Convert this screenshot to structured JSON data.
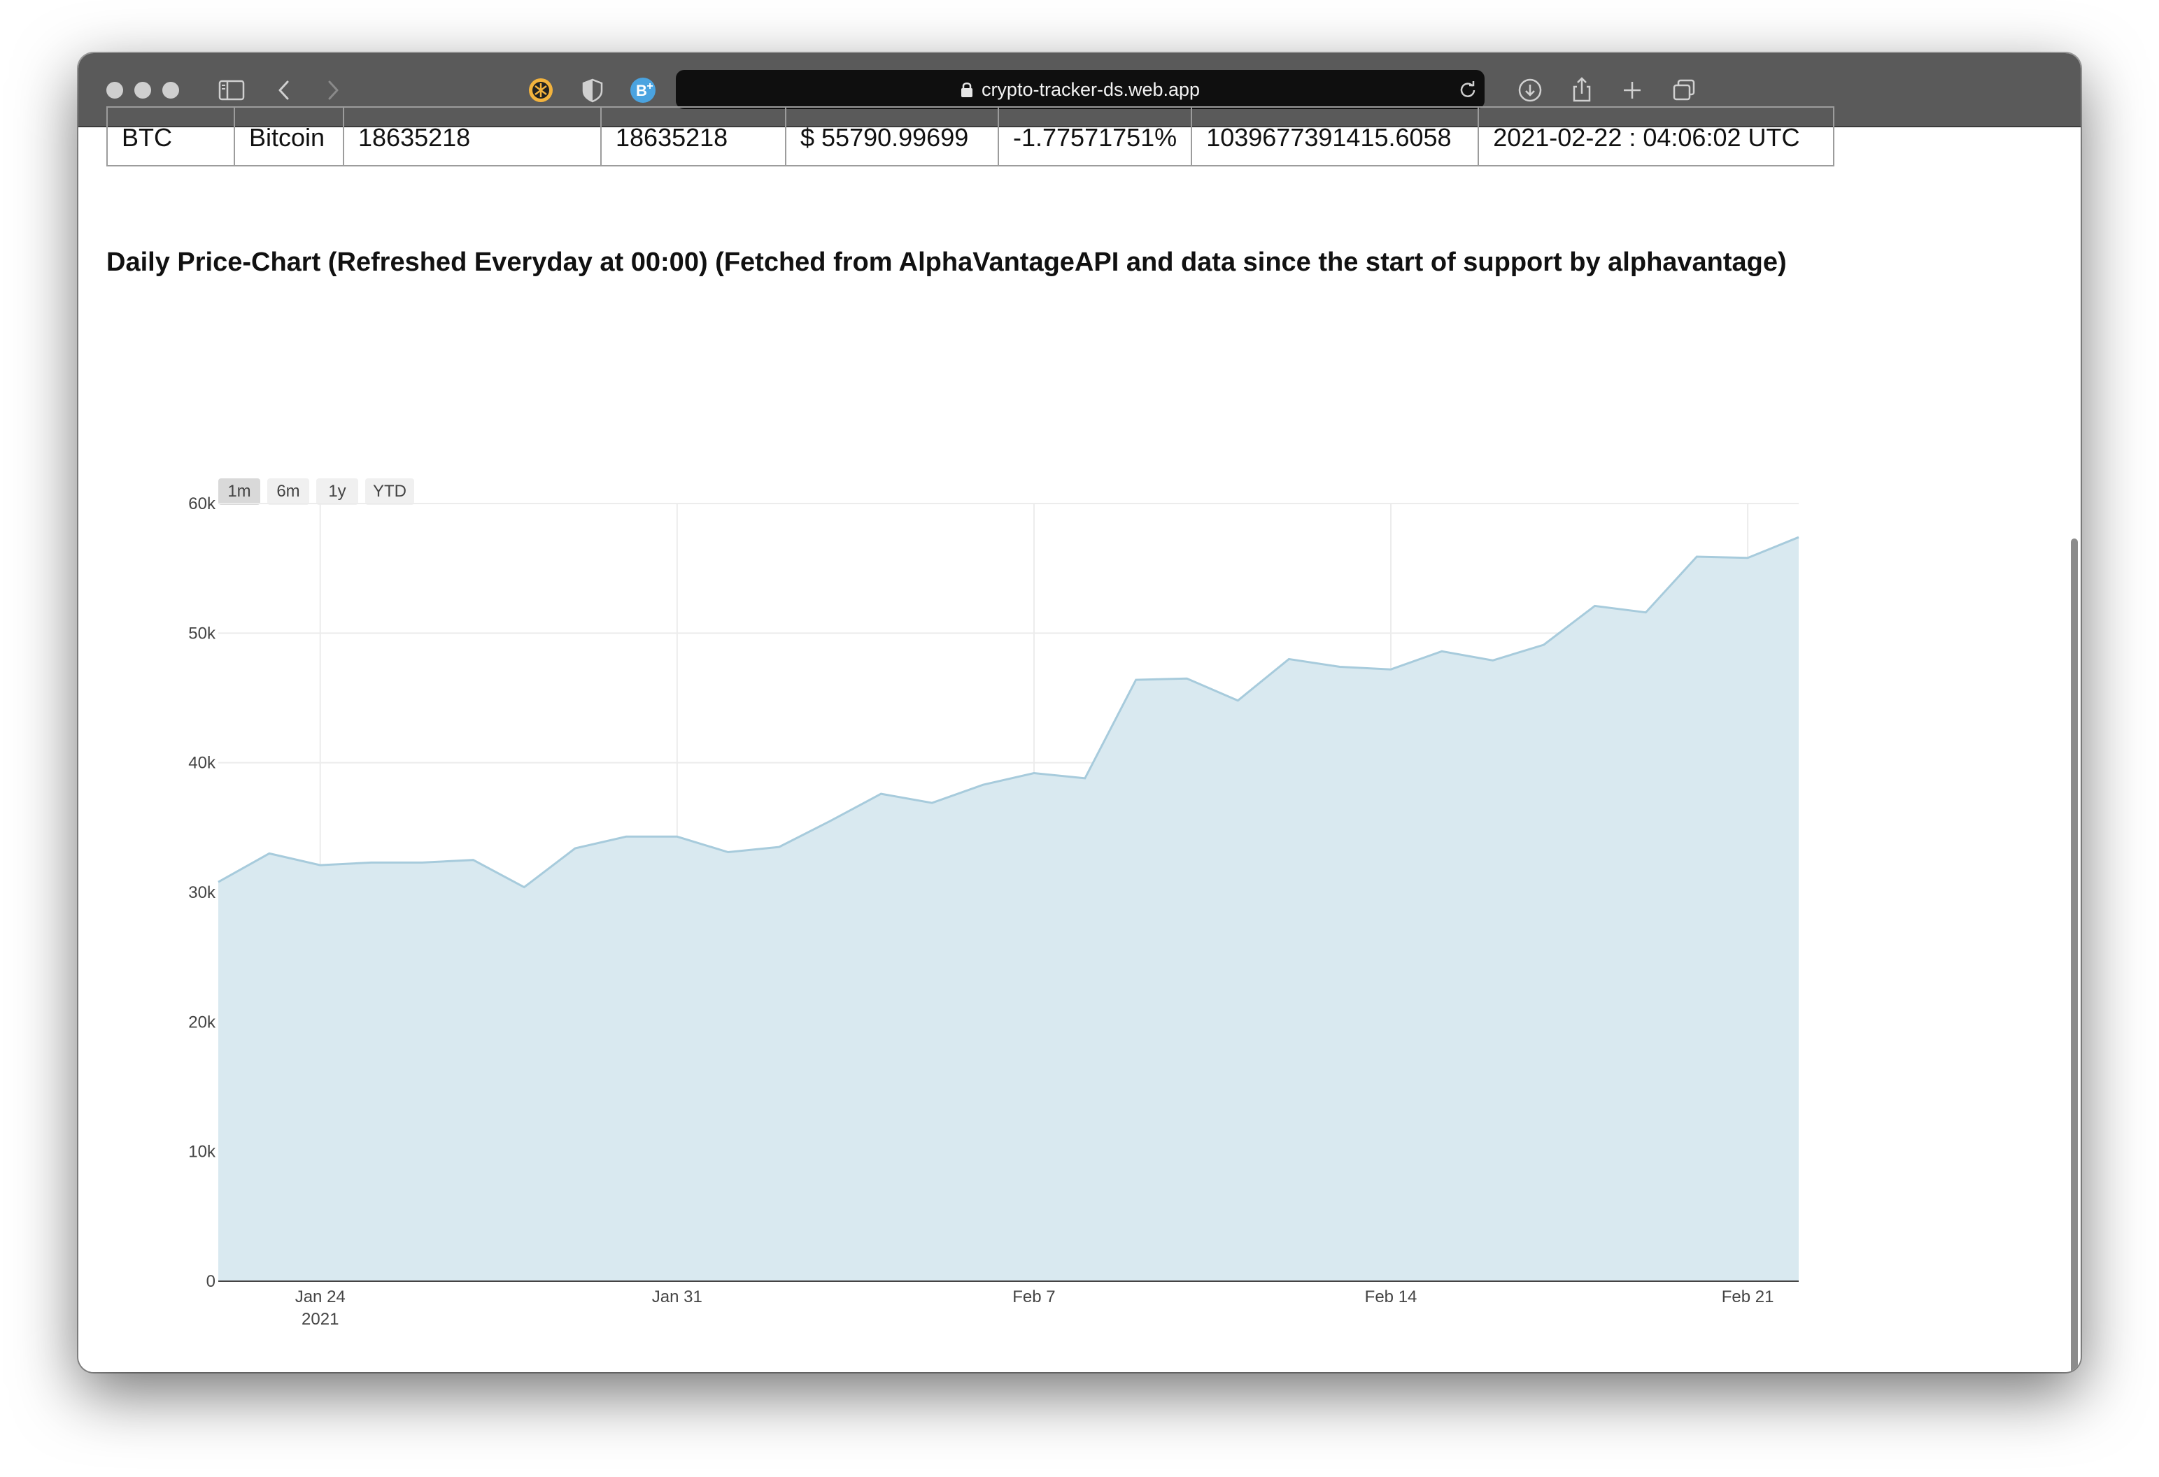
{
  "browser": {
    "url": "crypto-tracker-ds.web.app"
  },
  "table": {
    "row": [
      "BTC",
      "Bitcoin",
      "18635218",
      "18635218",
      "$ 55790.99699",
      "-1.77571751%",
      "1039677391415.6058",
      "2021-02-22 : 04:06:02 UTC"
    ]
  },
  "page": {
    "heading": "Daily Price-Chart (Refreshed Everyday at 00:00) (Fetched from AlphaVantageAPI and data since the start of support by alphavantage)"
  },
  "range_selector": {
    "buttons": [
      "1m",
      "6m",
      "1y",
      "YTD"
    ],
    "active": "1m"
  },
  "chart_data": {
    "type": "area",
    "title": "",
    "xlabel": "",
    "ylabel": "",
    "x": [
      "2021-01-22",
      "2021-01-23",
      "2021-01-24",
      "2021-01-25",
      "2021-01-26",
      "2021-01-27",
      "2021-01-28",
      "2021-01-29",
      "2021-01-30",
      "2021-01-31",
      "2021-02-01",
      "2021-02-02",
      "2021-02-03",
      "2021-02-04",
      "2021-02-05",
      "2021-02-06",
      "2021-02-07",
      "2021-02-08",
      "2021-02-09",
      "2021-02-10",
      "2021-02-11",
      "2021-02-12",
      "2021-02-13",
      "2021-02-14",
      "2021-02-15",
      "2021-02-16",
      "2021-02-17",
      "2021-02-18",
      "2021-02-19",
      "2021-02-20",
      "2021-02-21",
      "2021-02-22"
    ],
    "values": [
      30800,
      33000,
      32100,
      32300,
      32300,
      32500,
      30400,
      33400,
      34300,
      34300,
      33100,
      33500,
      35500,
      37600,
      36900,
      38300,
      39200,
      38800,
      46400,
      46500,
      44800,
      48000,
      47400,
      47200,
      48600,
      47900,
      49100,
      52100,
      51600,
      55900,
      55800,
      57400
    ],
    "xticks": [
      {
        "date": "2021-01-24",
        "label": "Jan 24",
        "sublabel": "2021"
      },
      {
        "date": "2021-01-31",
        "label": "Jan 31",
        "sublabel": ""
      },
      {
        "date": "2021-02-07",
        "label": "Feb 7",
        "sublabel": ""
      },
      {
        "date": "2021-02-14",
        "label": "Feb 14",
        "sublabel": ""
      },
      {
        "date": "2021-02-21",
        "label": "Feb 21",
        "sublabel": ""
      }
    ],
    "yticks": [
      {
        "value": 0,
        "label": "0"
      },
      {
        "value": 10000,
        "label": "10k"
      },
      {
        "value": 20000,
        "label": "20k"
      },
      {
        "value": 30000,
        "label": "30k"
      },
      {
        "value": 40000,
        "label": "40k"
      },
      {
        "value": 50000,
        "label": "50k"
      },
      {
        "value": 60000,
        "label": "60k"
      }
    ],
    "ylim": [
      0,
      60000
    ],
    "grid": true,
    "colors": {
      "fill": "#d9e9f0",
      "line": "#a7cbdc",
      "grid": "#ececec",
      "axis": "#444444"
    }
  }
}
